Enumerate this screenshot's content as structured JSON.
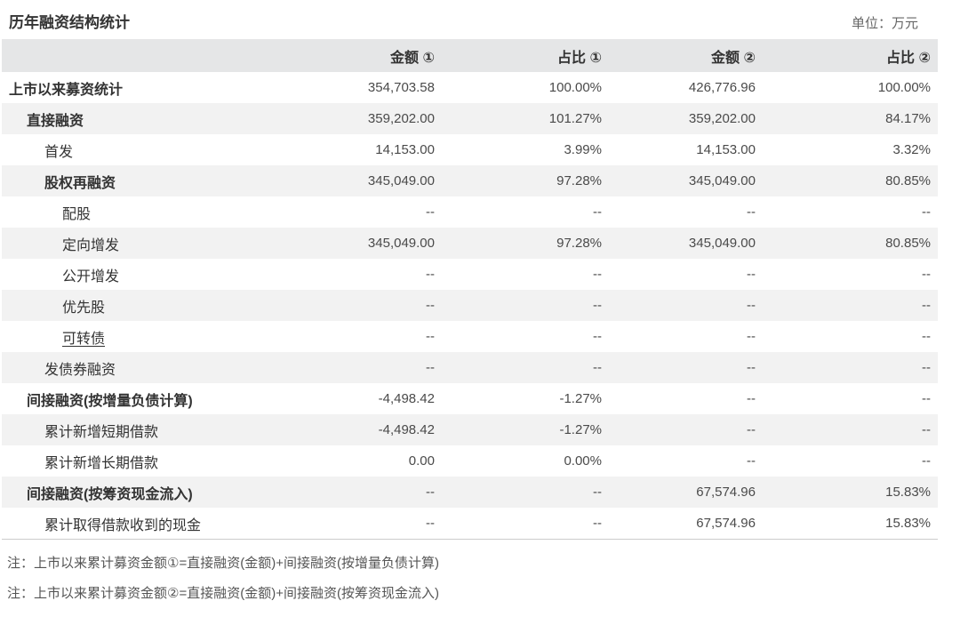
{
  "page": {
    "title": "历年融资结构统计",
    "unit_label": "单位：万元"
  },
  "table": {
    "columns": [
      "",
      "金额 ①",
      "占比 ①",
      "金额 ②",
      "占比 ②"
    ],
    "rows": [
      {
        "label": "上市以来募资统计",
        "indent": 0,
        "bold": true,
        "link": false,
        "amount1": "354,703.58",
        "ratio1": "100.00%",
        "amount2": "426,776.96",
        "ratio2": "100.00%"
      },
      {
        "label": "直接融资",
        "indent": 1,
        "bold": true,
        "link": false,
        "amount1": "359,202.00",
        "ratio1": "101.27%",
        "amount2": "359,202.00",
        "ratio2": "84.17%"
      },
      {
        "label": "首发",
        "indent": 2,
        "bold": false,
        "link": false,
        "amount1": "14,153.00",
        "ratio1": "3.99%",
        "amount2": "14,153.00",
        "ratio2": "3.32%"
      },
      {
        "label": "股权再融资",
        "indent": 2,
        "bold": true,
        "link": false,
        "amount1": "345,049.00",
        "ratio1": "97.28%",
        "amount2": "345,049.00",
        "ratio2": "80.85%"
      },
      {
        "label": "配股",
        "indent": 3,
        "bold": false,
        "link": false,
        "amount1": "--",
        "ratio1": "--",
        "amount2": "--",
        "ratio2": "--"
      },
      {
        "label": "定向增发",
        "indent": 3,
        "bold": false,
        "link": false,
        "amount1": "345,049.00",
        "ratio1": "97.28%",
        "amount2": "345,049.00",
        "ratio2": "80.85%"
      },
      {
        "label": "公开增发",
        "indent": 3,
        "bold": false,
        "link": false,
        "amount1": "--",
        "ratio1": "--",
        "amount2": "--",
        "ratio2": "--"
      },
      {
        "label": "优先股",
        "indent": 3,
        "bold": false,
        "link": false,
        "amount1": "--",
        "ratio1": "--",
        "amount2": "--",
        "ratio2": "--"
      },
      {
        "label": "可转债",
        "indent": 3,
        "bold": false,
        "link": true,
        "amount1": "--",
        "ratio1": "--",
        "amount2": "--",
        "ratio2": "--"
      },
      {
        "label": "发债券融资",
        "indent": 2,
        "bold": false,
        "link": false,
        "amount1": "--",
        "ratio1": "--",
        "amount2": "--",
        "ratio2": "--"
      },
      {
        "label": "间接融资(按增量负债计算)",
        "indent": 1,
        "bold": true,
        "link": false,
        "amount1": "-4,498.42",
        "ratio1": "-1.27%",
        "amount2": "--",
        "ratio2": "--"
      },
      {
        "label": "累计新增短期借款",
        "indent": 2,
        "bold": false,
        "link": false,
        "amount1": "-4,498.42",
        "ratio1": "-1.27%",
        "amount2": "--",
        "ratio2": "--"
      },
      {
        "label": "累计新增长期借款",
        "indent": 2,
        "bold": false,
        "link": false,
        "amount1": "0.00",
        "ratio1": "0.00%",
        "amount2": "--",
        "ratio2": "--"
      },
      {
        "label": "间接融资(按筹资现金流入)",
        "indent": 1,
        "bold": true,
        "link": false,
        "amount1": "--",
        "ratio1": "--",
        "amount2": "67,574.96",
        "ratio2": "15.83%"
      },
      {
        "label": "累计取得借款收到的现金",
        "indent": 2,
        "bold": false,
        "link": false,
        "amount1": "--",
        "ratio1": "--",
        "amount2": "67,574.96",
        "ratio2": "15.83%"
      }
    ]
  },
  "notes": [
    "注：上市以来累计募资金额①=直接融资(金额)+间接融资(按增量负债计算)",
    "注：上市以来累计募资金额②=直接融资(金额)+间接融资(按筹资现金流入)"
  ],
  "colors": {
    "header_bg": "#e5e6e7",
    "stripe_bg": "#f2f2f2",
    "title_text": "#333333",
    "value_text": "#4a4a4a",
    "muted_text": "#666666",
    "note_text": "#555555",
    "divider": "#cccccc"
  }
}
